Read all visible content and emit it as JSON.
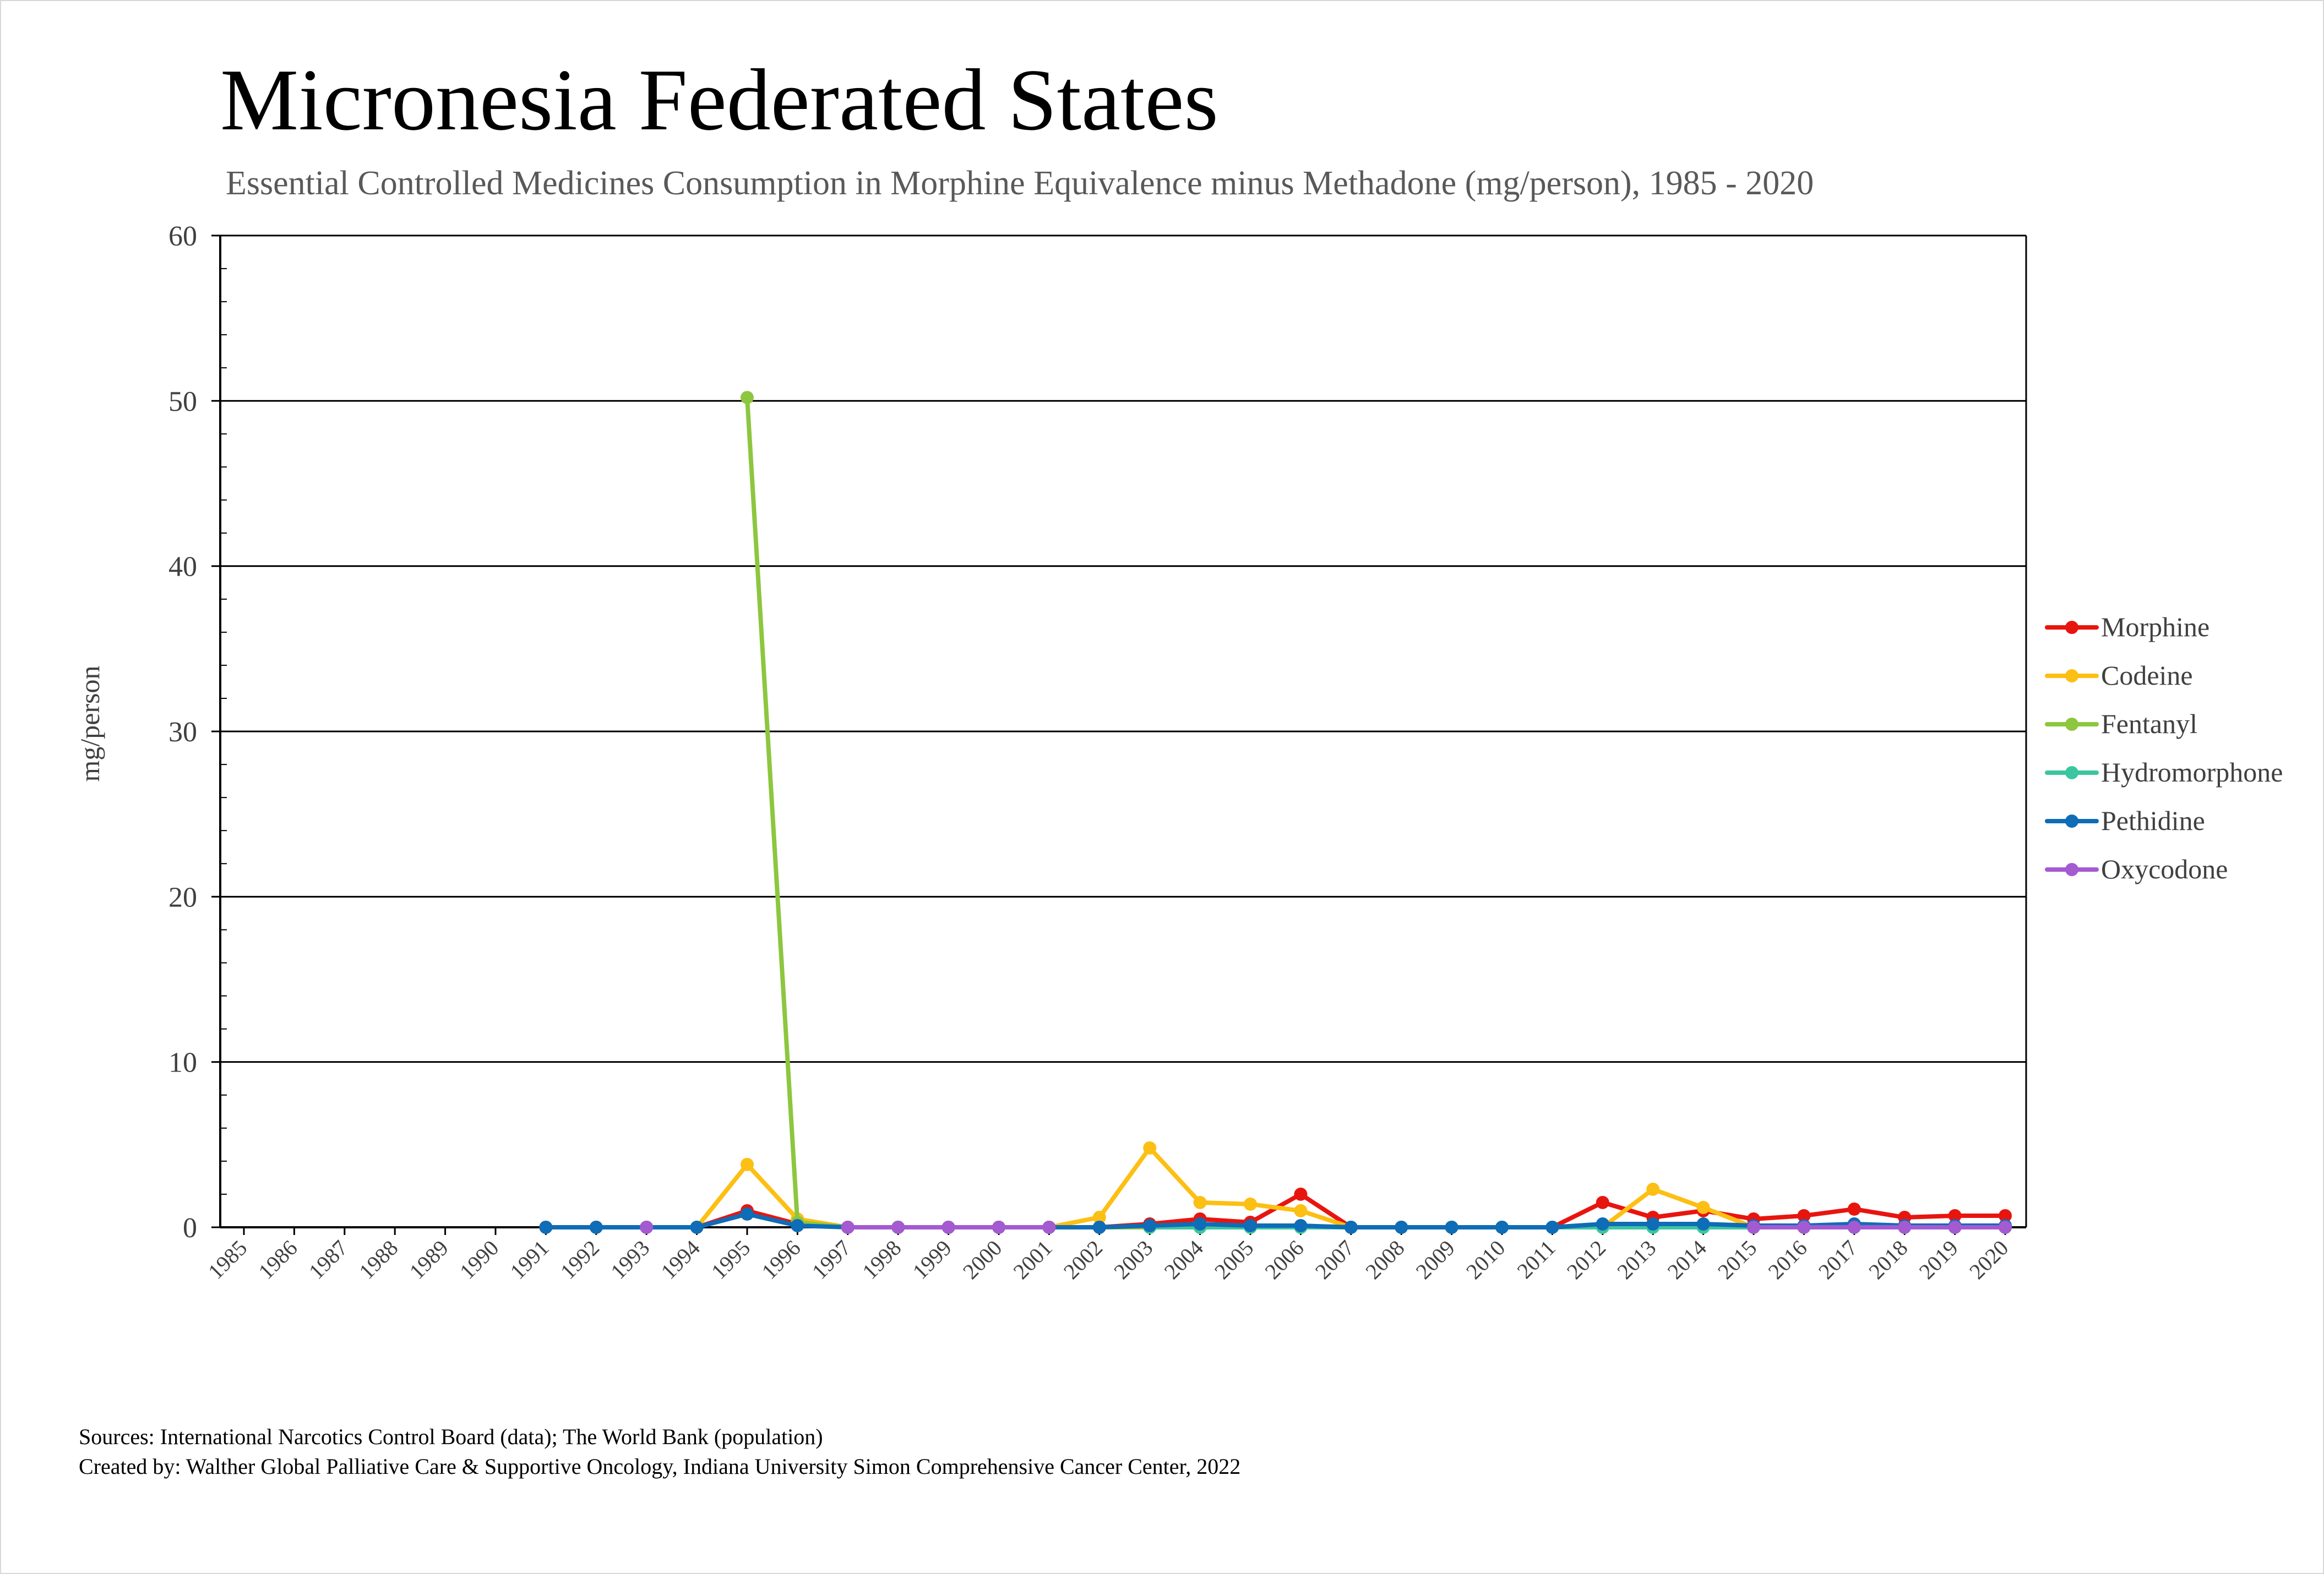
{
  "footer": {
    "sources": "Sources: International Narcotics Control Board (data); The World Bank (population)",
    "created_by": "Created by: Walther Global Palliative Care & Supportive Oncology, Indiana University Simon Comprehensive Cancer Center, 2022"
  },
  "chart_data": {
    "type": "line",
    "title": "Micronesia Federated States",
    "subtitle": "Essential Controlled Medicines Consumption in Morphine Equivalence minus Methadone (mg/person), 1985 - 2020",
    "xlabel": "",
    "ylabel": "mg/person",
    "ylim": [
      0,
      60
    ],
    "yticks": [
      0,
      10,
      20,
      30,
      40,
      50,
      60
    ],
    "grid": true,
    "legend_position": "right",
    "x": [
      "1985",
      "1986",
      "1987",
      "1988",
      "1989",
      "1990",
      "1991",
      "1992",
      "1993",
      "1994",
      "1995",
      "1996",
      "1997",
      "1998",
      "1999",
      "2000",
      "2001",
      "2002",
      "2003",
      "2004",
      "2005",
      "2006",
      "2007",
      "2008",
      "2009",
      "2010",
      "2011",
      "2012",
      "2013",
      "2014",
      "2015",
      "2016",
      "2017",
      "2018",
      "2019",
      "2020"
    ],
    "series": [
      {
        "name": "Morphine",
        "color": "#e8150f",
        "values": [
          null,
          null,
          null,
          null,
          null,
          null,
          0,
          0,
          0,
          0,
          1.0,
          0.2,
          0,
          0,
          0,
          0,
          0,
          0,
          0.2,
          0.5,
          0.3,
          2.0,
          0,
          0,
          0,
          0,
          0,
          1.5,
          0.6,
          1.0,
          0.5,
          0.7,
          1.1,
          0.6,
          0.7,
          0.7
        ]
      },
      {
        "name": "Codeine",
        "color": "#fcbf13",
        "values": [
          null,
          null,
          null,
          null,
          null,
          null,
          0,
          0,
          0,
          0,
          3.8,
          0.5,
          0,
          0,
          0,
          0,
          0,
          0.6,
          4.8,
          1.5,
          1.4,
          1.0,
          0,
          0,
          0,
          0,
          0,
          0,
          2.3,
          1.2,
          0,
          0,
          0,
          0,
          0,
          0
        ]
      },
      {
        "name": "Fentanyl",
        "color": "#8dc63f",
        "values": [
          null,
          null,
          null,
          null,
          null,
          null,
          null,
          null,
          null,
          null,
          50.2,
          0.3,
          0,
          0,
          0,
          0,
          0,
          0,
          0,
          0,
          0,
          0,
          0,
          0,
          0,
          0,
          0,
          0,
          0,
          0,
          0,
          0,
          0,
          0,
          0,
          0
        ]
      },
      {
        "name": "Hydromorphone",
        "color": "#3cc6a0",
        "values": [
          null,
          null,
          null,
          null,
          null,
          null,
          null,
          null,
          null,
          null,
          null,
          null,
          null,
          null,
          null,
          null,
          null,
          null,
          0,
          0,
          0,
          0,
          0,
          0,
          0,
          0,
          0,
          0,
          0,
          0,
          0,
          0,
          0,
          0,
          0,
          0
        ]
      },
      {
        "name": "Pethidine",
        "color": "#0f6cb6",
        "values": [
          null,
          null,
          null,
          null,
          null,
          null,
          0,
          0,
          0,
          0,
          0.8,
          0.1,
          0,
          0,
          0,
          0,
          0,
          0,
          0.1,
          0.2,
          0.1,
          0.1,
          0,
          0,
          0,
          0,
          0,
          0.2,
          0.2,
          0.2,
          0.1,
          0.1,
          0.2,
          0.1,
          0.1,
          0.1
        ]
      },
      {
        "name": "Oxycodone",
        "color": "#a45ad1",
        "values": [
          null,
          null,
          null,
          null,
          null,
          null,
          null,
          null,
          0,
          null,
          null,
          null,
          0,
          0,
          0,
          0,
          0,
          null,
          null,
          null,
          null,
          null,
          null,
          null,
          null,
          null,
          null,
          null,
          null,
          null,
          0,
          0,
          0,
          0,
          0,
          0
        ]
      }
    ]
  }
}
